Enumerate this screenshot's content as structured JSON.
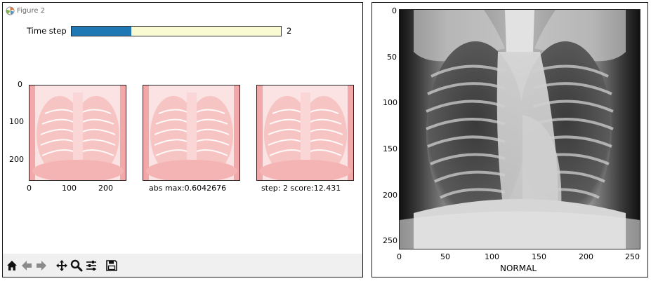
{
  "window": {
    "title": "Figure 2"
  },
  "slider": {
    "label": "Time step",
    "value": "2",
    "fill_fraction": 0.285
  },
  "left_axes": {
    "y_ticks": [
      "0",
      "100",
      "200"
    ],
    "x_ticks": [
      "0",
      "100",
      "200"
    ]
  },
  "subplots": {
    "middle_caption": "abs max:0.6042676",
    "right_caption": "step: 2 score:12.431"
  },
  "right_axes": {
    "y_ticks": [
      "0",
      "50",
      "100",
      "150",
      "200",
      "250"
    ],
    "x_ticks": [
      "0",
      "50",
      "100",
      "150",
      "200",
      "250"
    ],
    "xlabel": "NORMAL"
  },
  "toolbar": {
    "items": [
      "home-icon",
      "back-arrow-icon",
      "forward-arrow-icon",
      "pan-icon",
      "zoom-icon",
      "subplots-config-icon",
      "save-icon"
    ]
  },
  "colors": {
    "slider_fill": "#1f77b4",
    "slider_track": "#fafad2",
    "overlay": "#f4a3a3"
  }
}
